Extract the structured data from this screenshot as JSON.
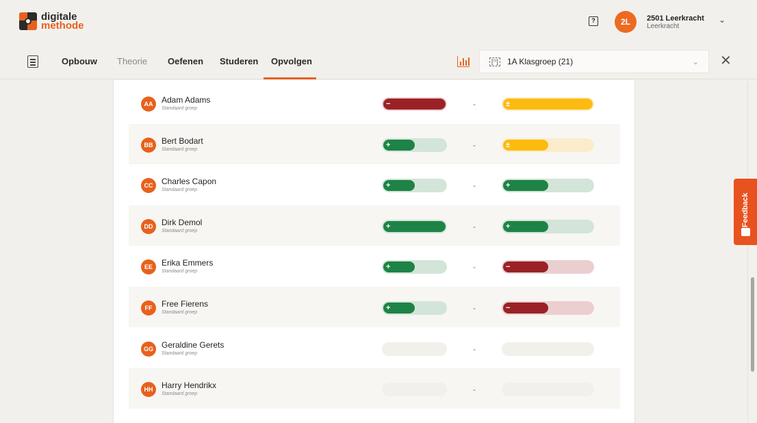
{
  "brand": {
    "line1": "digitale",
    "line2": "methode"
  },
  "header": {
    "help_icon": "chat-question-icon",
    "user_initials": "2L",
    "user_name": "2501 Leerkracht",
    "user_role": "Leerkracht"
  },
  "nav": {
    "tabs": [
      {
        "label": "Opbouw",
        "state": "normal"
      },
      {
        "label": "Theorie",
        "state": "muted"
      },
      {
        "label": "Oefenen",
        "state": "normal"
      },
      {
        "label": "Studeren",
        "state": "normal"
      },
      {
        "label": "Opvolgen",
        "state": "active"
      }
    ],
    "group_icon_text": "[꙳]",
    "group_label": "1A Klasgroep (21)"
  },
  "feedback": {
    "label": "Feedback"
  },
  "colors": {
    "accent": "#e8611c",
    "green": "#1e8346",
    "red": "#9a2226",
    "yellow": "#fdbb10"
  },
  "students": [
    {
      "initials": "AA",
      "name": "Adam Adams",
      "group": "Standaard groep",
      "score1": {
        "status": "red",
        "symbol": "−",
        "fraction": 1.0
      },
      "separator": "-",
      "score2": {
        "status": "yellow",
        "symbol": "±",
        "fraction": 1.0
      }
    },
    {
      "initials": "BB",
      "name": "Bert Bodart",
      "group": "Standaard groep",
      "score1": {
        "status": "green",
        "symbol": "+",
        "fraction": 0.5
      },
      "separator": "-",
      "score2": {
        "status": "yellow",
        "symbol": "±",
        "fraction": 0.5
      }
    },
    {
      "initials": "CC",
      "name": "Charles Capon",
      "group": "Standaard groep",
      "score1": {
        "status": "green",
        "symbol": "+",
        "fraction": 0.5
      },
      "separator": "-",
      "score2": {
        "status": "green",
        "symbol": "+",
        "fraction": 0.5
      }
    },
    {
      "initials": "DD",
      "name": "Dirk Demol",
      "group": "Standaard groep",
      "score1": {
        "status": "green",
        "symbol": "+",
        "fraction": 1.0
      },
      "separator": "-",
      "score2": {
        "status": "green",
        "symbol": "+",
        "fraction": 0.5
      }
    },
    {
      "initials": "EE",
      "name": "Erika Emmers",
      "group": "Standaard groep",
      "score1": {
        "status": "green",
        "symbol": "+",
        "fraction": 0.5
      },
      "separator": "-",
      "score2": {
        "status": "red",
        "symbol": "−",
        "fraction": 0.5
      }
    },
    {
      "initials": "FF",
      "name": "Free Fierens",
      "group": "Standaard groep",
      "score1": {
        "status": "green",
        "symbol": "+",
        "fraction": 0.5
      },
      "separator": "-",
      "score2": {
        "status": "red",
        "symbol": "−",
        "fraction": 0.5
      }
    },
    {
      "initials": "GG",
      "name": "Geraldine Gerets",
      "group": "Standaard groep",
      "score1": {
        "status": "empty",
        "symbol": "",
        "fraction": 0
      },
      "separator": "-",
      "score2": {
        "status": "empty",
        "symbol": "",
        "fraction": 0
      }
    },
    {
      "initials": "HH",
      "name": "Harry Hendrikx",
      "group": "Standaard groep",
      "score1": {
        "status": "empty",
        "symbol": "",
        "fraction": 0
      },
      "separator": "-",
      "score2": {
        "status": "empty",
        "symbol": "",
        "fraction": 0
      }
    }
  ]
}
